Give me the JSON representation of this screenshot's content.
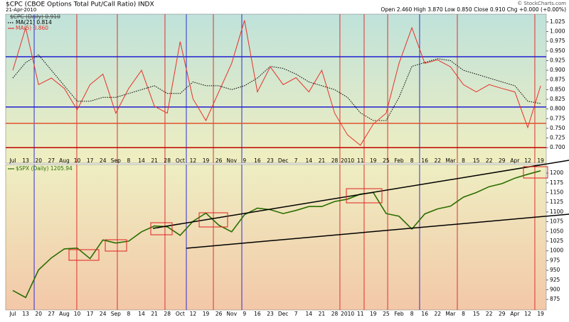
{
  "chart_data": [
    {
      "type": "line",
      "title": "$CPC (CBOE Options Total Put/Call Ratio) INDX",
      "date": "21-Apr-2010",
      "quote": "Open 2.460 High 3.870 Low 0.850 Close 0.910 Chg +0.000 (+0.00%)",
      "credit": "© StockCharts.com",
      "price_label": "$CPC (Daily) 0.910",
      "categories": [
        "Jul",
        "13",
        "20",
        "27",
        "Aug",
        "10",
        "17",
        "24",
        "Sep",
        "8",
        "14",
        "21",
        "28",
        "Oct",
        "12",
        "19",
        "26",
        "Nov",
        "9",
        "16",
        "23",
        "Dec",
        "7",
        "14",
        "21",
        "28",
        "2010",
        "11",
        "19",
        "25",
        "Feb",
        "8",
        "16",
        "22",
        "Mar",
        "8",
        "15",
        "22",
        "29",
        "Apr",
        "12",
        "19"
      ],
      "series": [
        {
          "name": "MA(21) 0.814",
          "color": "#000000",
          "dashed": true,
          "values": [
            0.88,
            0.92,
            0.94,
            0.9,
            0.86,
            0.82,
            0.82,
            0.83,
            0.83,
            0.84,
            0.85,
            0.86,
            0.84,
            0.84,
            0.87,
            0.86,
            0.86,
            0.85,
            0.86,
            0.88,
            0.91,
            0.905,
            0.89,
            0.87,
            0.86,
            0.85,
            0.83,
            0.79,
            0.77,
            0.77,
            0.83,
            0.91,
            0.92,
            0.93,
            0.925,
            0.9,
            0.89,
            0.88,
            0.87,
            0.86,
            0.82,
            0.814
          ]
        },
        {
          "name": "MA(5) 0.860",
          "color": "#e8302a",
          "dashed": false,
          "values": [
            0.9,
            1.01,
            0.863,
            0.88,
            0.853,
            0.798,
            0.863,
            0.89,
            0.789,
            0.853,
            0.9,
            0.807,
            0.789,
            0.974,
            0.826,
            0.77,
            0.844,
            0.918,
            1.029,
            0.844,
            0.909,
            0.863,
            0.881,
            0.844,
            0.9,
            0.789,
            0.733,
            0.706,
            0.761,
            0.789,
            0.918,
            1.01,
            0.918,
            0.927,
            0.909,
            0.863,
            0.844,
            0.863,
            0.853,
            0.844,
            0.752,
            0.86
          ]
        }
      ],
      "ylim": [
        0.66,
        1.045
      ],
      "yticks": [
        {
          "value": 0.7,
          "label": "0.700"
        },
        {
          "value": 0.725,
          "label": "0.725"
        },
        {
          "value": 0.75,
          "label": "0.750"
        },
        {
          "value": 0.775,
          "label": "0.775"
        },
        {
          "value": 0.8,
          "label": "0.800"
        },
        {
          "value": 0.825,
          "label": "0.825"
        },
        {
          "value": 0.85,
          "label": "0.850"
        },
        {
          "value": 0.875,
          "label": "0.875"
        },
        {
          "value": 0.9,
          "label": "0.900"
        },
        {
          "value": 0.925,
          "label": "0.925"
        },
        {
          "value": 0.95,
          "label": "0.950"
        },
        {
          "value": 0.975,
          "label": "0.975"
        },
        {
          "value": 1.0,
          "label": "1.000"
        },
        {
          "value": 1.025,
          "label": "1.025"
        }
      ],
      "hlines": [
        {
          "y": 0.935,
          "color": "#1f1fd0"
        },
        {
          "y": 0.805,
          "color": "#1f1fd0"
        },
        {
          "y": 0.763,
          "color": "#e05030"
        },
        {
          "y": 0.7,
          "color": "#c00000"
        }
      ],
      "vlines": [
        {
          "x": 1.66,
          "color": "#3030d0"
        },
        {
          "x": 4.97,
          "color": "#e03030"
        },
        {
          "x": 8.12,
          "color": "#e03030"
        },
        {
          "x": 11.82,
          "color": "#e03030"
        },
        {
          "x": 13.48,
          "color": "#3030d0"
        },
        {
          "x": 15.58,
          "color": "#e03030"
        },
        {
          "x": 17.79,
          "color": "#3030d0"
        },
        {
          "x": 25.41,
          "color": "#e03030"
        },
        {
          "x": 27.29,
          "color": "#e03030"
        },
        {
          "x": 29.12,
          "color": "#e03030"
        },
        {
          "x": 31.6,
          "color": "#3030d0"
        },
        {
          "x": 34.53,
          "color": "#e03030"
        },
        {
          "x": 40.55,
          "color": "#e03030"
        }
      ]
    },
    {
      "type": "line",
      "categories": [
        "Jul",
        "13",
        "20",
        "27",
        "Aug",
        "10",
        "17",
        "24",
        "Sep",
        "8",
        "14",
        "21",
        "28",
        "Oct",
        "12",
        "19",
        "26",
        "Nov",
        "9",
        "16",
        "23",
        "Dec",
        "7",
        "14",
        "21",
        "28",
        "2010",
        "11",
        "19",
        "25",
        "Feb",
        "8",
        "16",
        "22",
        "Mar",
        "8",
        "15",
        "22",
        "29",
        "Apr",
        "12",
        "19"
      ],
      "series": [
        {
          "name": "$SPX (Daily) 1205.94",
          "color": "#2a6e00",
          "dashed": false,
          "values": [
            898,
            880,
            951,
            982,
            1005,
            1007,
            980,
            1028,
            1020,
            1025,
            1049,
            1064,
            1062,
            1040,
            1076,
            1097,
            1066,
            1049,
            1093,
            1110,
            1106,
            1096,
            1104,
            1114,
            1114,
            1127,
            1133,
            1146,
            1150,
            1096,
            1089,
            1056,
            1095,
            1108,
            1115,
            1138,
            1150,
            1165,
            1173,
            1187,
            1197,
            1205.94
          ]
        }
      ],
      "ylim": [
        848,
        1222
      ],
      "yticks": [
        875,
        900,
        925,
        950,
        975,
        1000,
        1025,
        1050,
        1075,
        1100,
        1125,
        1150,
        1175,
        1200
      ]
    }
  ]
}
